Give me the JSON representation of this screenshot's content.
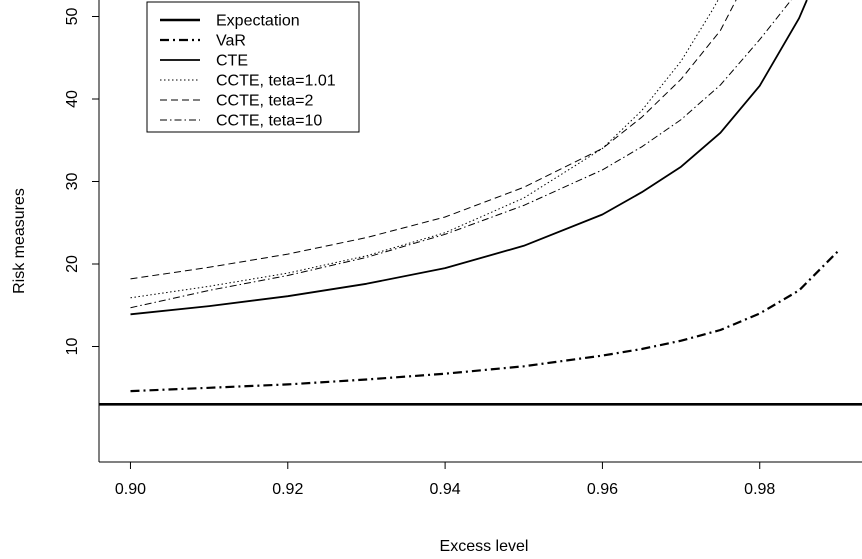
{
  "chart_data": {
    "type": "line",
    "xlabel": "Excess level",
    "ylabel": "Risk measures",
    "xlim": [
      0.896,
      0.993
    ],
    "ylim": [
      -4,
      52
    ],
    "x_ticks": [
      0.9,
      0.92,
      0.94,
      0.96,
      0.98
    ],
    "x_tick_labels": [
      "0.90",
      "0.92",
      "0.94",
      "0.96",
      "0.98"
    ],
    "y_ticks": [
      10,
      20,
      30,
      40,
      50
    ],
    "y_tick_labels": [
      "10",
      "20",
      "30",
      "40",
      "50"
    ],
    "grid": false,
    "legend_position": "top-left",
    "series": [
      {
        "name": "Expectation",
        "style": "solid-thick",
        "x": [
          0.896,
          0.993
        ],
        "y": [
          3.0,
          3.0
        ]
      },
      {
        "name": "VaR",
        "style": "dashdot-thick",
        "x": [
          0.9,
          0.91,
          0.92,
          0.93,
          0.94,
          0.95,
          0.96,
          0.965,
          0.97,
          0.975,
          0.98,
          0.985,
          0.99
        ],
        "y": [
          4.6,
          5.0,
          5.4,
          6.0,
          6.7,
          7.6,
          8.9,
          9.7,
          10.7,
          12.0,
          14.0,
          16.8,
          21.6
        ]
      },
      {
        "name": "CTE",
        "style": "solid",
        "x": [
          0.9,
          0.91,
          0.92,
          0.93,
          0.94,
          0.95,
          0.96,
          0.965,
          0.97,
          0.975,
          0.98,
          0.985,
          0.986
        ],
        "y": [
          13.9,
          14.9,
          16.1,
          17.6,
          19.5,
          22.2,
          26.0,
          28.7,
          31.8,
          35.9,
          41.6,
          49.8,
          52.0
        ]
      },
      {
        "name": "CCTE, teta=1.01",
        "style": "dotted",
        "x": [
          0.9,
          0.91,
          0.92,
          0.93,
          0.94,
          0.95,
          0.96,
          0.965,
          0.97,
          0.974,
          0.9747
        ],
        "y": [
          15.9,
          17.3,
          18.9,
          21.0,
          23.8,
          28.0,
          34.0,
          38.6,
          44.6,
          50.8,
          52.0
        ]
      },
      {
        "name": "CCTE, teta=2",
        "style": "dashed",
        "x": [
          0.9,
          0.91,
          0.92,
          0.93,
          0.94,
          0.95,
          0.96,
          0.965,
          0.97,
          0.975,
          0.977
        ],
        "y": [
          18.2,
          19.6,
          21.2,
          23.2,
          25.7,
          29.3,
          34.0,
          37.8,
          42.4,
          48.3,
          52.0
        ]
      },
      {
        "name": "CCTE, teta=10",
        "style": "dashdot",
        "x": [
          0.9,
          0.91,
          0.92,
          0.93,
          0.94,
          0.95,
          0.96,
          0.965,
          0.97,
          0.975,
          0.98,
          0.984
        ],
        "y": [
          14.7,
          16.8,
          18.6,
          20.8,
          23.6,
          27.1,
          31.4,
          34.2,
          37.5,
          41.7,
          47.2,
          52.0
        ]
      }
    ]
  }
}
